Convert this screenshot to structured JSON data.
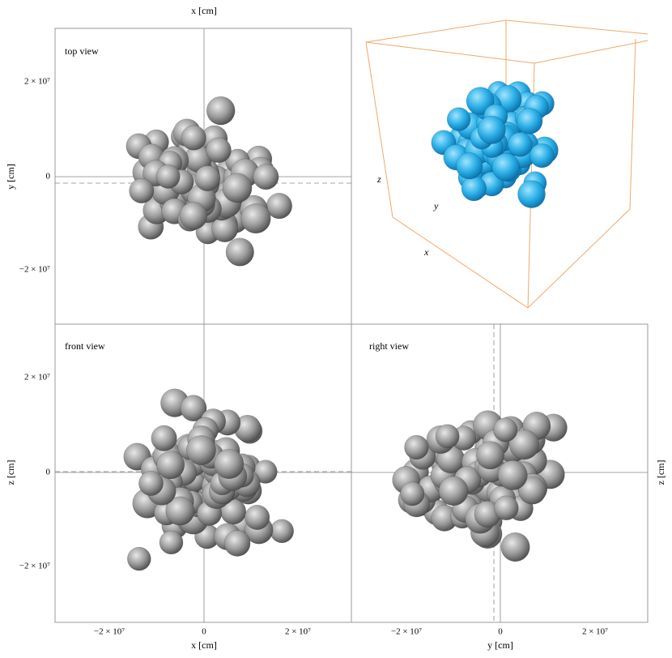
{
  "figure": {
    "top_view": {
      "title": "top view",
      "x_label": "x [cm]",
      "y_label": "y [cm]",
      "y_ticks": [
        "2 × 10⁷",
        "0",
        "−2 × 10⁷"
      ]
    },
    "cube_view": {
      "axis_labels": [
        "z",
        "y",
        "x"
      ]
    },
    "front_view": {
      "title": "front view",
      "z_label": "z [cm]",
      "z_ticks": [
        "2 × 10⁷",
        "0",
        "−2 × 10⁷"
      ],
      "x_ticks": [
        "−2 × 10⁷",
        "0",
        "2 × 10⁷"
      ],
      "x_label": "x [cm]"
    },
    "right_view": {
      "title": "right view",
      "z_label": "z [cm]",
      "y_ticks": [
        "−2 × 10⁷",
        "0",
        "2 × 10⁷"
      ],
      "y_label": "y [cm]"
    }
  }
}
